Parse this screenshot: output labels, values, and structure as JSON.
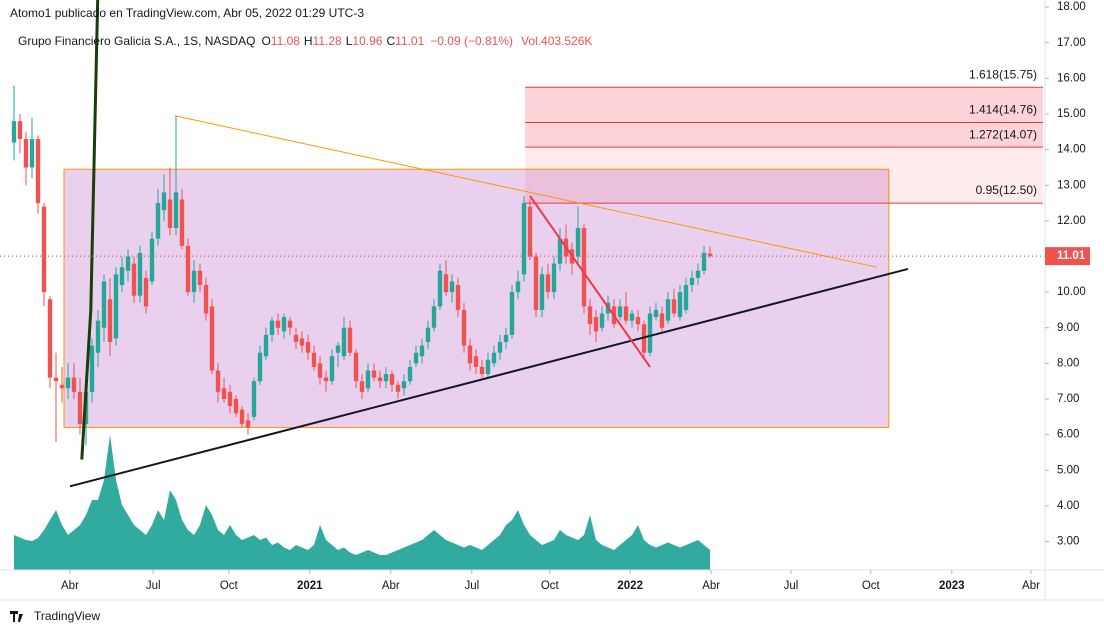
{
  "header": {
    "publisher": "Atomo1 publicado en TradingView.com, Abr 05, 2022 01:29 UTC-3"
  },
  "footer": {
    "brand": "TradingView"
  },
  "chart_data": {
    "type": "candlestick",
    "legend": {
      "symbol": "Grupo Financiero Galicia S.A., 1S, NASDAQ",
      "open_label": "O",
      "high_label": "H",
      "low_label": "L",
      "close_label": "C",
      "change": "−0.09 (−0.81%)",
      "volume": "Vol.403.526K"
    },
    "up_color": "#26a69a",
    "down_color": "#ef5350",
    "volume_color": "#26a69a",
    "candles": [
      [
        14.2,
        15.8,
        13.7,
        14.8
      ],
      [
        14.8,
        15.0,
        13.9,
        14.3
      ],
      [
        14.3,
        14.5,
        13.0,
        13.5
      ],
      [
        13.5,
        14.9,
        13.2,
        14.3
      ],
      [
        14.3,
        14.4,
        12.2,
        12.5
      ],
      [
        12.4,
        12.5,
        9.6,
        10.0
      ],
      [
        9.8,
        9.9,
        7.3,
        7.6
      ],
      [
        7.6,
        8.3,
        5.8,
        7.5
      ],
      [
        7.4,
        7.9,
        6.9,
        7.3
      ],
      [
        7.3,
        8.0,
        7.0,
        7.6
      ],
      [
        7.6,
        8.0,
        7.0,
        7.2
      ],
      [
        7.2,
        7.6,
        6.0,
        6.3
      ],
      [
        6.3,
        7.4,
        5.7,
        7.2
      ],
      [
        7.2,
        8.7,
        6.9,
        8.5
      ],
      [
        8.3,
        9.5,
        7.9,
        9.2
      ],
      [
        9.0,
        10.5,
        8.6,
        10.3
      ],
      [
        9.8,
        10.4,
        8.2,
        8.6
      ],
      [
        8.7,
        10.7,
        8.5,
        10.5
      ],
      [
        10.2,
        11.0,
        10.0,
        10.7
      ],
      [
        10.6,
        11.2,
        10.3,
        11.0
      ],
      [
        10.8,
        11.0,
        9.7,
        9.9
      ],
      [
        9.9,
        11.3,
        9.7,
        11.1
      ],
      [
        10.4,
        10.6,
        9.4,
        9.6
      ],
      [
        10.3,
        11.7,
        10.2,
        11.5
      ],
      [
        11.5,
        12.9,
        11.3,
        12.5
      ],
      [
        12.3,
        13.3,
        12.0,
        12.8
      ],
      [
        12.6,
        13.5,
        11.6,
        11.8
      ],
      [
        11.8,
        14.95,
        11.6,
        12.8
      ],
      [
        12.6,
        12.9,
        11.2,
        11.3
      ],
      [
        11.3,
        11.5,
        9.9,
        10.0
      ],
      [
        10.0,
        10.9,
        9.7,
        10.6
      ],
      [
        10.6,
        10.8,
        10.0,
        10.2
      ],
      [
        10.2,
        10.4,
        9.2,
        9.4
      ],
      [
        9.6,
        9.8,
        7.7,
        7.8
      ],
      [
        7.8,
        8.0,
        6.9,
        7.2
      ],
      [
        7.3,
        7.6,
        6.9,
        7.0
      ],
      [
        7.2,
        7.4,
        6.6,
        6.8
      ],
      [
        7.0,
        7.1,
        6.5,
        6.6
      ],
      [
        6.7,
        6.8,
        6.2,
        6.3
      ],
      [
        6.4,
        6.6,
        6.0,
        6.2
      ],
      [
        6.5,
        7.6,
        6.4,
        7.5
      ],
      [
        7.5,
        8.5,
        7.4,
        8.3
      ],
      [
        8.2,
        9.0,
        8.1,
        8.8
      ],
      [
        8.8,
        9.3,
        8.6,
        9.2
      ],
      [
        9.2,
        9.4,
        8.8,
        9.0
      ],
      [
        8.9,
        9.4,
        8.7,
        9.3
      ],
      [
        9.2,
        9.3,
        8.8,
        9.0
      ],
      [
        8.8,
        9.0,
        8.4,
        8.6
      ],
      [
        8.7,
        8.9,
        8.3,
        8.5
      ],
      [
        8.6,
        8.8,
        8.1,
        8.3
      ],
      [
        8.3,
        8.5,
        7.8,
        7.9
      ],
      [
        8.0,
        8.2,
        7.4,
        7.6
      ],
      [
        7.6,
        7.8,
        7.2,
        7.5
      ],
      [
        7.5,
        8.4,
        7.4,
        8.2
      ],
      [
        8.3,
        8.6,
        7.9,
        8.5
      ],
      [
        8.2,
        9.3,
        8.1,
        9.0
      ],
      [
        9.0,
        9.2,
        8.2,
        8.3
      ],
      [
        8.3,
        8.4,
        7.3,
        7.5
      ],
      [
        7.5,
        7.7,
        7.0,
        7.2
      ],
      [
        7.3,
        8.0,
        7.2,
        7.8
      ],
      [
        7.8,
        8.0,
        7.5,
        7.6
      ],
      [
        7.6,
        7.8,
        7.3,
        7.5
      ],
      [
        7.5,
        7.9,
        7.3,
        7.7
      ],
      [
        7.7,
        7.8,
        7.2,
        7.4
      ],
      [
        7.4,
        7.5,
        7.0,
        7.2
      ],
      [
        7.3,
        7.7,
        7.1,
        7.5
      ],
      [
        7.5,
        8.1,
        7.4,
        7.9
      ],
      [
        8.0,
        8.5,
        7.9,
        8.3
      ],
      [
        8.2,
        8.7,
        8.0,
        8.5
      ],
      [
        8.6,
        9.2,
        8.4,
        9.0
      ],
      [
        9.0,
        9.8,
        8.9,
        9.6
      ],
      [
        9.6,
        10.8,
        9.5,
        10.6
      ],
      [
        10.5,
        10.9,
        9.9,
        10.0
      ],
      [
        10.0,
        10.5,
        9.7,
        10.3
      ],
      [
        10.2,
        10.4,
        9.3,
        9.5
      ],
      [
        9.5,
        9.7,
        8.3,
        8.5
      ],
      [
        8.5,
        8.7,
        7.8,
        8.0
      ],
      [
        8.2,
        8.4,
        7.7,
        7.9
      ],
      [
        7.9,
        8.1,
        7.6,
        7.7
      ],
      [
        7.7,
        8.3,
        7.6,
        8.1
      ],
      [
        8.0,
        8.5,
        7.9,
        8.3
      ],
      [
        8.3,
        8.8,
        8.1,
        8.6
      ],
      [
        8.6,
        9.0,
        8.4,
        8.8
      ],
      [
        8.8,
        10.2,
        8.7,
        10.0
      ],
      [
        10.0,
        10.6,
        9.8,
        10.3
      ],
      [
        10.5,
        12.7,
        10.3,
        12.5
      ],
      [
        12.4,
        12.6,
        10.9,
        11.0
      ],
      [
        11.0,
        11.1,
        9.3,
        9.5
      ],
      [
        9.5,
        10.7,
        9.3,
        10.5
      ],
      [
        10.5,
        10.8,
        9.8,
        10.0
      ],
      [
        10.0,
        11.0,
        9.8,
        10.8
      ],
      [
        10.8,
        11.8,
        10.6,
        11.5
      ],
      [
        11.5,
        11.9,
        10.8,
        11.0
      ],
      [
        11.2,
        11.4,
        10.5,
        10.8
      ],
      [
        11.0,
        12.4,
        10.8,
        11.8
      ],
      [
        11.8,
        11.9,
        9.4,
        9.6
      ],
      [
        9.6,
        9.8,
        8.8,
        9.1
      ],
      [
        9.3,
        9.5,
        8.6,
        8.9
      ],
      [
        9.0,
        9.6,
        8.9,
        9.4
      ],
      [
        9.4,
        9.9,
        9.2,
        9.7
      ],
      [
        9.6,
        9.8,
        9.0,
        9.1
      ],
      [
        9.3,
        9.8,
        9.2,
        9.6
      ],
      [
        9.6,
        10.0,
        9.1,
        9.2
      ],
      [
        9.2,
        9.5,
        9.0,
        9.4
      ],
      [
        9.3,
        9.5,
        8.9,
        9.1
      ],
      [
        9.1,
        9.2,
        8.1,
        8.3
      ],
      [
        8.3,
        9.6,
        8.2,
        9.4
      ],
      [
        9.3,
        9.7,
        9.2,
        9.5
      ],
      [
        9.4,
        9.6,
        8.9,
        9.0
      ],
      [
        9.2,
        10.0,
        9.1,
        9.8
      ],
      [
        9.8,
        10.1,
        9.3,
        9.4
      ],
      [
        9.3,
        10.2,
        9.2,
        10.0
      ],
      [
        9.5,
        10.4,
        9.4,
        10.2
      ],
      [
        10.2,
        10.6,
        10.0,
        10.4
      ],
      [
        10.4,
        10.8,
        10.2,
        10.6
      ],
      [
        10.6,
        11.3,
        10.5,
        11.1
      ],
      [
        11.08,
        11.28,
        10.96,
        11.01
      ]
    ],
    "volume": [
      700,
      650,
      600,
      580,
      640,
      800,
      1000,
      1200,
      900,
      700,
      800,
      900,
      1100,
      1400,
      1400,
      1800,
      2700,
      1800,
      1300,
      1100,
      900,
      800,
      700,
      900,
      1200,
      1000,
      1600,
      1400,
      1000,
      800,
      700,
      900,
      1300,
      1100,
      800,
      700,
      900,
      700,
      600,
      650,
      700,
      600,
      650,
      500,
      550,
      450,
      400,
      500,
      450,
      400,
      500,
      900,
      600,
      500,
      400,
      450,
      350,
      300,
      350,
      400,
      350,
      300,
      300,
      350,
      400,
      450,
      500,
      550,
      600,
      700,
      800,
      700,
      600,
      550,
      500,
      450,
      500,
      450,
      400,
      500,
      600,
      700,
      900,
      1000,
      1200,
      900,
      700,
      600,
      500,
      550,
      600,
      800,
      700,
      650,
      600,
      700,
      1100,
      600,
      500,
      450,
      400,
      500,
      600,
      700,
      900,
      600,
      500,
      450,
      500,
      550,
      500,
      450,
      500,
      550,
      600,
      500,
      403.526
    ],
    "ylim": [
      2.2,
      18.2
    ],
    "yticks": [
      {
        "value": 18,
        "label": "18.00"
      },
      {
        "value": 17,
        "label": "17.00"
      },
      {
        "value": 16,
        "label": "16.00"
      },
      {
        "value": 15,
        "label": "15.00"
      },
      {
        "value": 14,
        "label": "14.00"
      },
      {
        "value": 13,
        "label": "13.00"
      },
      {
        "value": 12,
        "label": "12.00"
      },
      {
        "value": 11,
        "label": "11.00"
      },
      {
        "value": 10,
        "label": "10.00"
      },
      {
        "value": 9,
        "label": "9.00"
      },
      {
        "value": 8,
        "label": "8.00"
      },
      {
        "value": 7,
        "label": "7.00"
      },
      {
        "value": 6,
        "label": "6.00"
      },
      {
        "value": 5,
        "label": "5.00"
      },
      {
        "value": 4,
        "label": "4.00"
      },
      {
        "value": 3,
        "label": "3.00"
      }
    ],
    "xticks": [
      {
        "value": 9.33,
        "label": "Abr"
      },
      {
        "value": 23.2,
        "label": "Jul"
      },
      {
        "value": 35.8,
        "label": "Oct"
      },
      {
        "value": 49.3,
        "label": "2021"
      },
      {
        "value": 62.8,
        "label": "Abr"
      },
      {
        "value": 76.3,
        "label": "Jul"
      },
      {
        "value": 89.3,
        "label": "Oct"
      },
      {
        "value": 102.7,
        "label": "2022"
      },
      {
        "value": 116.2,
        "label": "Abr"
      },
      {
        "value": 129.5,
        "label": "Jul"
      },
      {
        "value": 142.8,
        "label": "Oct"
      },
      {
        "value": 156.3,
        "label": "2023"
      },
      {
        "value": 169.5,
        "label": "Abr"
      }
    ],
    "rectangle": {
      "from": [
        8.33,
        13.45
      ],
      "to": [
        145.8,
        6.2
      ],
      "color": "#ff9800"
    },
    "fib": {
      "from": 85.2,
      "to": 171.5,
      "color": "#e53935",
      "levels": [
        {
          "price": 12.5,
          "label": "0.95(12.50)"
        },
        {
          "price": 14.07,
          "label": "1.272(14.07)"
        },
        {
          "price": 14.76,
          "label": "1.414(14.76)"
        },
        {
          "price": 15.75,
          "label": "1.618(15.75)"
        }
      ]
    },
    "trendlines": [
      {
        "color": "#ff9800",
        "width": 1,
        "points": [
          [
            26.8,
            14.95
          ],
          [
            143.8,
            10.7
          ]
        ]
      },
      {
        "color": "#131722",
        "width": 2,
        "points": [
          [
            9.33,
            4.55
          ],
          [
            149,
            10.65
          ]
        ]
      },
      {
        "color": "#f23645",
        "width": 2,
        "points": [
          [
            86,
            12.7
          ],
          [
            106,
            7.9
          ]
        ]
      },
      {
        "color": "#1b3d0a",
        "width": 3,
        "points": [
          [
            11.3,
            5.3
          ],
          [
            12.8,
            9.5
          ],
          [
            14,
            18.6
          ]
        ]
      }
    ]
  }
}
